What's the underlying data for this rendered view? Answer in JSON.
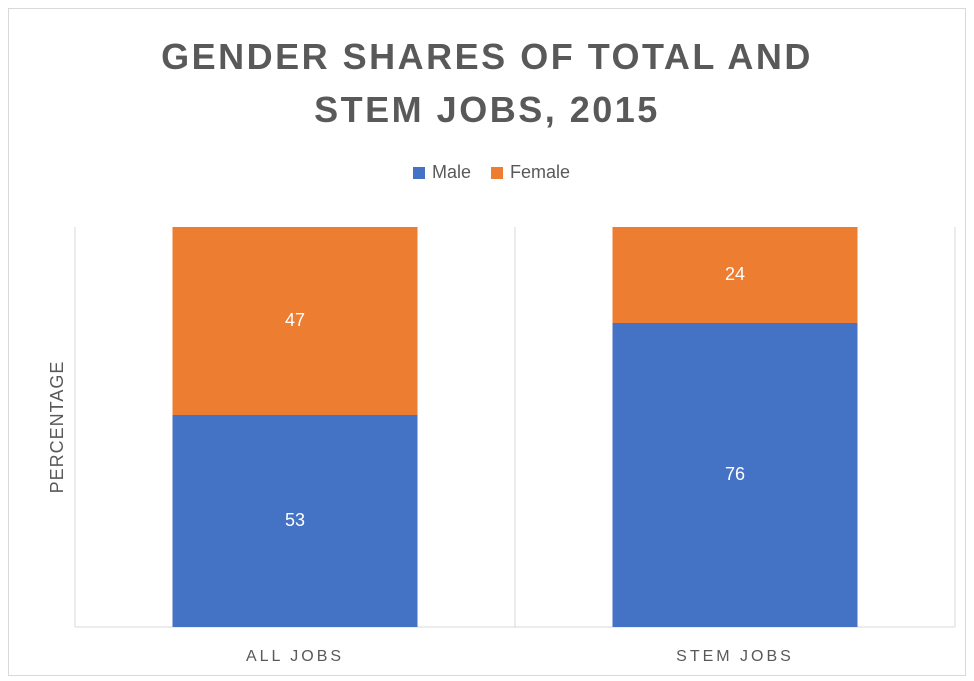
{
  "chart_data": {
    "type": "stacked_bar",
    "title": "GENDER SHARES OF TOTAL AND STEM JOBS, 2015",
    "y_label": "PERCENTAGE",
    "categories": [
      "ALL JOBS",
      "STEM JOBS"
    ],
    "series": [
      {
        "name": "Male",
        "color": "#4472c4",
        "values": [
          53,
          76
        ]
      },
      {
        "name": "Female",
        "color": "#ed7d31",
        "values": [
          47,
          24
        ]
      }
    ],
    "ylim": [
      0,
      100
    ],
    "legend": "top"
  }
}
